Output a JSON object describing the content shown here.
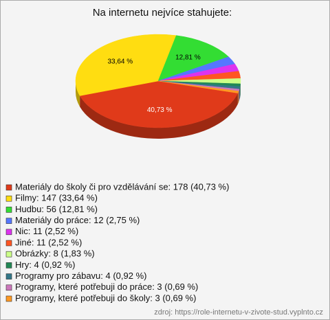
{
  "chart_data": {
    "type": "pie",
    "title": "Na internetu nejvíce stahujete:",
    "categories": [
      "Materiály do školy či pro vzdělávání se: 178 (40,73 %)",
      "Filmy: 147 (33,64 %)",
      "Hudbu: 56 (12,81 %)",
      "Materiály do práce: 12 (2,75 %)",
      "Nic: 11 (2,52 %)",
      "Jiné: 11 (2,52 %)",
      "Obrázky: 8 (1,83 %)",
      "Hry: 4 (0,92 %)",
      "Programy pro zábavu: 4 (0,92 %)",
      "Programy, které potřebuji do práce: 3 (0,69 %)",
      "Programy, které potřebuji do školy: 3 (0,69 %)"
    ],
    "values": [
      40.73,
      33.64,
      12.81,
      2.75,
      2.52,
      2.52,
      1.83,
      0.92,
      0.92,
      0.69,
      0.69
    ],
    "value_labels": [
      "40,73 %",
      "33,64 %",
      "12,81 %",
      null,
      null,
      null,
      null,
      null,
      null,
      null,
      null
    ],
    "colors": [
      "#e03a1a",
      "#ffdd11",
      "#33dd33",
      "#5577ff",
      "#dd33ee",
      "#ff5522",
      "#ccff88",
      "#228855",
      "#337788",
      "#cc77bb",
      "#ff9922"
    ],
    "source": "zdroj: https://role-internetu-v-zivote-stud.vyplnto.cz"
  }
}
